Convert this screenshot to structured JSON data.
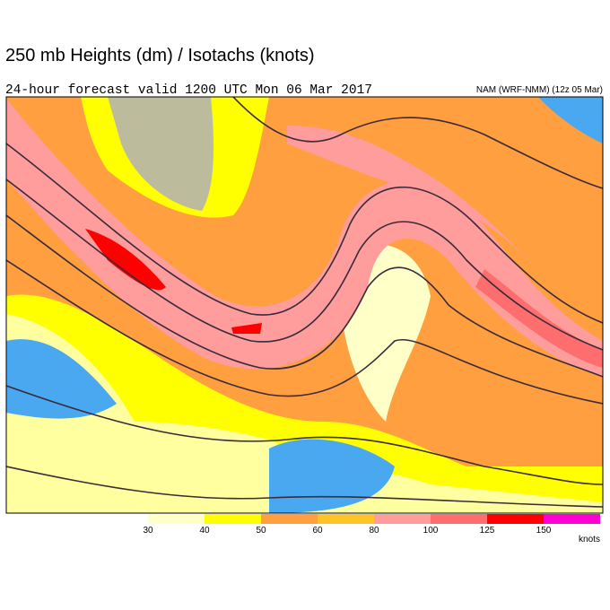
{
  "header": {
    "title": "250 mb Heights (dm) / Isotachs (knots)",
    "subtitle": "24-hour forecast valid 1200 UTC Mon 06 Mar 2017",
    "model": "NAM (WRF-NMM) (12z 05 Mar)"
  },
  "colorbar": {
    "ticks": [
      30,
      40,
      50,
      60,
      80,
      100,
      125,
      150
    ],
    "colors": [
      "#ffffc8",
      "#ffff00",
      "#ff9f40",
      "#ffc428",
      "#ff9c9c",
      "#ff6e6e",
      "#ff0000",
      "#ff00d0"
    ],
    "units": "knots"
  }
}
